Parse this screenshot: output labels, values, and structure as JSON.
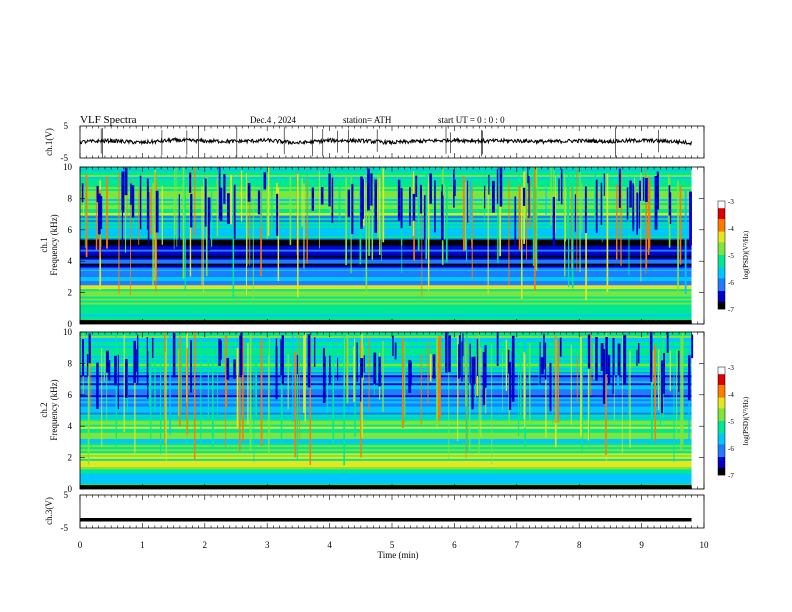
{
  "header": {
    "title": "VLF  Spectra",
    "date": "Dec.4  , 2024",
    "station": "station= ATH",
    "start": "start  UT  =   0 : 0  : 0"
  },
  "colorbar": {
    "label": "log(PSD)(V²/Hz)",
    "ticks": [
      "-3",
      "-4",
      "-5",
      "-6",
      "-7"
    ],
    "colors": [
      "#000000",
      "#0000cd",
      "#1e7cff",
      "#00c8ff",
      "#00e890",
      "#7ce63c",
      "#e6e61e",
      "#ff7a00",
      "#dc0000",
      "#ffffff"
    ]
  },
  "chart_data": [
    {
      "type": "line",
      "name": "ch1-waveform",
      "ylabel": "ch.1(V)",
      "ylim": [
        -5,
        5
      ],
      "xlim": [
        0,
        10
      ],
      "y_ticks": [
        "5",
        "-5"
      ],
      "x": [
        0,
        0.5,
        1,
        1.5,
        2,
        2.5,
        3,
        3.5,
        4,
        4.5,
        5,
        5.5,
        6,
        6.5,
        7,
        7.5,
        8,
        8.5,
        9,
        9.5,
        9.8
      ],
      "values": [
        0,
        0.4,
        -0.2,
        0.6,
        0.3,
        0.2,
        0.5,
        -0.3,
        0.5,
        0.4,
        -0.2,
        0.3,
        0.6,
        0.3,
        0.4,
        0.1,
        0.4,
        0.2,
        0.5,
        0.2,
        -0.3
      ]
    },
    {
      "type": "heatmap",
      "name": "ch1-spectrogram",
      "ylabel": "Frequency  (kHz)",
      "channel_label": "ch.1",
      "xlim": [
        0,
        10
      ],
      "ylim": [
        0,
        10
      ],
      "data_xmax": 9.8,
      "y_ticks": [
        "0",
        "2",
        "4",
        "6",
        "8",
        "10"
      ],
      "value_range": [
        -7,
        -3
      ],
      "bands": [
        {
          "freq_khz": [
            0,
            0.3
          ],
          "log_psd": -7
        },
        {
          "freq_khz": [
            0.3,
            1.0
          ],
          "log_psd": -5.5
        },
        {
          "freq_khz": [
            1.0,
            2.0
          ],
          "log_psd": -5.0
        },
        {
          "freq_khz": [
            2.0,
            2.6
          ],
          "log_psd": -4.8
        },
        {
          "freq_khz": [
            2.6,
            3.5
          ],
          "log_psd": -6.0
        },
        {
          "freq_khz": [
            3.5,
            5.5
          ],
          "log_psd": -6.6
        },
        {
          "freq_khz": [
            5.5,
            7.0
          ],
          "log_psd": -5.5
        },
        {
          "freq_khz": [
            7.0,
            10.0
          ],
          "log_psd": -5.0
        }
      ]
    },
    {
      "type": "heatmap",
      "name": "ch2-spectrogram",
      "ylabel": "Frequency  (kHz)",
      "channel_label": "ch.2",
      "xlim": [
        0,
        10
      ],
      "ylim": [
        0,
        10
      ],
      "data_xmax": 9.8,
      "y_ticks": [
        "0",
        "2",
        "4",
        "6",
        "8",
        "10"
      ],
      "value_range": [
        -7,
        -3
      ],
      "bands": [
        {
          "freq_khz": [
            0,
            0.3
          ],
          "log_psd": -7
        },
        {
          "freq_khz": [
            0.3,
            1.5
          ],
          "log_psd": -5.3
        },
        {
          "freq_khz": [
            1.5,
            2.3
          ],
          "log_psd": -4.6
        },
        {
          "freq_khz": [
            2.3,
            3.3
          ],
          "log_psd": -5.2
        },
        {
          "freq_khz": [
            3.3,
            4.6
          ],
          "log_psd": -4.9
        },
        {
          "freq_khz": [
            4.6,
            5.5
          ],
          "log_psd": -5.8
        },
        {
          "freq_khz": [
            5.5,
            7.5
          ],
          "log_psd": -6.0
        },
        {
          "freq_khz": [
            7.5,
            10.0
          ],
          "log_psd": -5.4
        }
      ]
    },
    {
      "type": "line",
      "name": "ch3-waveform",
      "ylabel": "ch.3(V)",
      "ylim": [
        -5,
        5
      ],
      "xlim": [
        0,
        10
      ],
      "xlabel": "Time  (min)",
      "y_ticks": [
        "5",
        "-5"
      ],
      "x_ticks": [
        "0",
        "1",
        "2",
        "3",
        "4",
        "5",
        "6",
        "7",
        "8",
        "9",
        "10"
      ],
      "x": [
        0,
        9.8
      ],
      "values": [
        -2.5,
        -2.5
      ]
    }
  ]
}
